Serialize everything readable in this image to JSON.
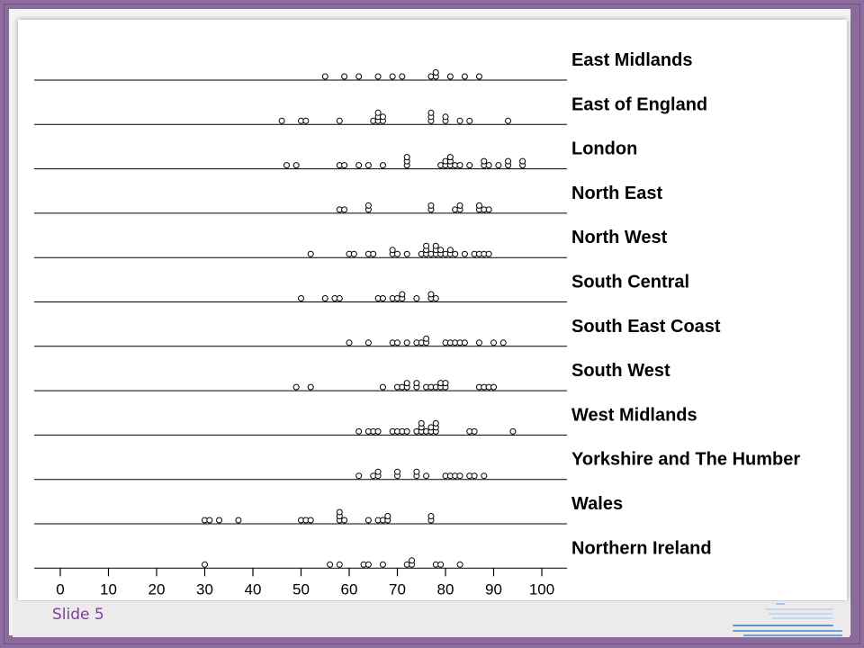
{
  "slide": {
    "number_label": "Slide 5"
  },
  "chart_data": {
    "type": "scatter",
    "subtype": "dot-strip",
    "title": "",
    "xlabel": "",
    "ylabel": "",
    "xlim": [
      -5,
      105
    ],
    "xticks": [
      0,
      10,
      20,
      30,
      40,
      50,
      60,
      70,
      80,
      90,
      100
    ],
    "marker": "open-circle",
    "series": [
      {
        "name": "East Midlands",
        "values": [
          55,
          59,
          62,
          66,
          69,
          71,
          77,
          78,
          78,
          81,
          84,
          87
        ]
      },
      {
        "name": "East of England",
        "values": [
          46,
          50,
          51,
          58,
          65,
          66,
          66,
          66,
          67,
          67,
          77,
          77,
          77,
          80,
          80,
          83,
          85,
          93
        ]
      },
      {
        "name": "London",
        "values": [
          47,
          49,
          58,
          59,
          62,
          64,
          67,
          72,
          72,
          72,
          79,
          80,
          80,
          81,
          81,
          81,
          82,
          83,
          85,
          88,
          88,
          89,
          91,
          93,
          93,
          96,
          96
        ]
      },
      {
        "name": "North East",
        "values": [
          58,
          59,
          64,
          64,
          77,
          77,
          82,
          83,
          83,
          87,
          87,
          88,
          89
        ]
      },
      {
        "name": "North West",
        "values": [
          52,
          60,
          61,
          64,
          65,
          69,
          69,
          70,
          72,
          75,
          76,
          76,
          76,
          77,
          78,
          78,
          78,
          79,
          79,
          80,
          81,
          81,
          82,
          84,
          86,
          87,
          88,
          89
        ]
      },
      {
        "name": "South Central",
        "values": [
          50,
          55,
          57,
          58,
          66,
          67,
          69,
          70,
          71,
          71,
          74,
          77,
          77,
          78
        ]
      },
      {
        "name": "South East Coast",
        "values": [
          60,
          64,
          69,
          70,
          72,
          74,
          75,
          76,
          76,
          80,
          81,
          82,
          83,
          84,
          87,
          90,
          92
        ]
      },
      {
        "name": "South West",
        "values": [
          49,
          52,
          67,
          70,
          71,
          72,
          72,
          74,
          74,
          76,
          77,
          78,
          79,
          79,
          80,
          80,
          87,
          88,
          89,
          90
        ]
      },
      {
        "name": "West Midlands",
        "values": [
          62,
          64,
          65,
          66,
          69,
          70,
          71,
          72,
          74,
          75,
          75,
          75,
          76,
          77,
          77,
          78,
          78,
          78,
          85,
          86,
          94
        ]
      },
      {
        "name": "Yorkshire and The Humber",
        "values": [
          62,
          65,
          66,
          66,
          70,
          70,
          74,
          74,
          76,
          80,
          81,
          82,
          83,
          85,
          86,
          88
        ]
      },
      {
        "name": "Wales",
        "values": [
          30,
          31,
          33,
          37,
          50,
          51,
          52,
          58,
          58,
          58,
          59,
          64,
          66,
          67,
          68,
          68,
          77,
          77
        ]
      },
      {
        "name": "Northern Ireland",
        "values": [
          30,
          56,
          58,
          63,
          64,
          67,
          72,
          73,
          73,
          78,
          79,
          83
        ]
      }
    ]
  }
}
